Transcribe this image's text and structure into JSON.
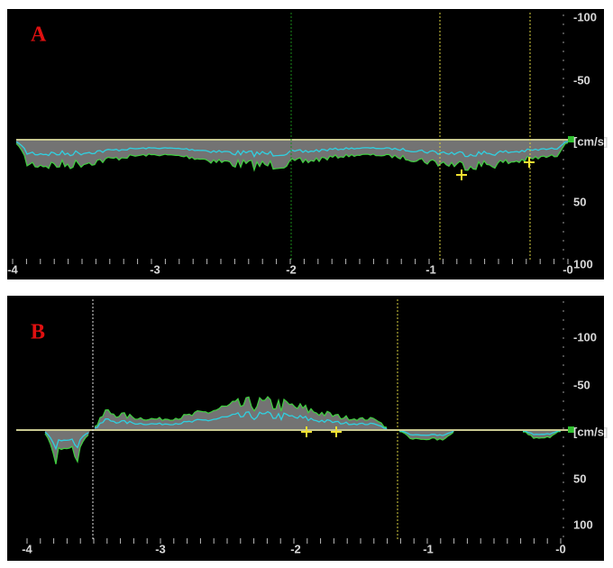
{
  "panels": [
    {
      "label": "A",
      "x_labels": [
        "-4",
        "-3",
        "-2",
        "-1",
        "-0"
      ],
      "y_labels": [
        "-100",
        "-50",
        "[cm/s]",
        "50",
        "100"
      ]
    },
    {
      "label": "B",
      "x_labels": [
        "-4",
        "-3",
        "-2",
        "-1",
        "-0"
      ],
      "y_labels": [
        "-100",
        "-50",
        "[cm/s]",
        "50",
        "100"
      ]
    }
  ]
}
